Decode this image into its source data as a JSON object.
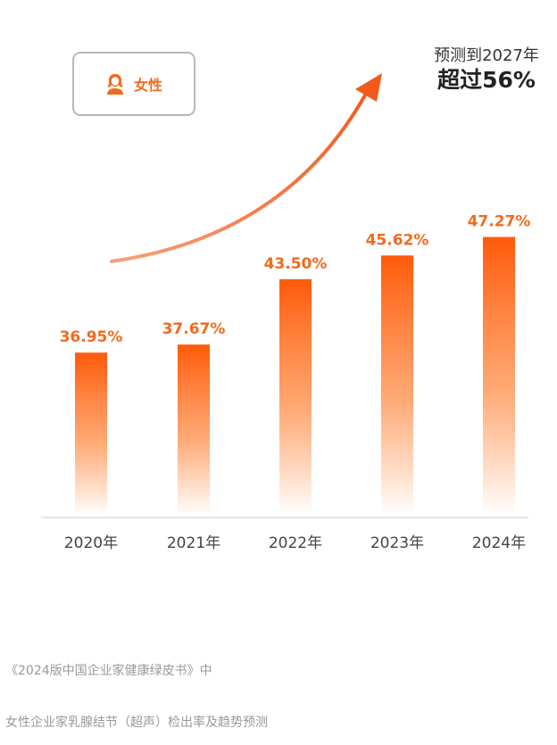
{
  "legend": {
    "label": "女性",
    "icon": "female-user-icon",
    "color": "#f36a1d"
  },
  "forecast": {
    "line1": "预测到2027年",
    "line2": "超过56%"
  },
  "captions": {
    "source": "《2024版中国企业家健康绿皮书》中",
    "title": "女性企业家乳腺结节（超声）检出率及趋势预测"
  },
  "colors": {
    "bar_top": "#ff5a0a",
    "bar_bottom": "#ffffff",
    "value_label": "#f36a1d",
    "trend_arrow": "#f36a1d",
    "baseline": "#dddddd",
    "tick_label": "#444444"
  },
  "chart_data": {
    "type": "bar",
    "categories": [
      "2020年",
      "2021年",
      "2022年",
      "2023年",
      "2024年"
    ],
    "values": [
      36.95,
      37.67,
      43.5,
      45.62,
      47.27
    ],
    "value_labels": [
      "36.95%",
      "37.67%",
      "43.50%",
      "45.62%",
      "47.27%"
    ],
    "series": [
      {
        "name": "女性",
        "values": [
          36.95,
          37.67,
          43.5,
          45.62,
          47.27
        ]
      }
    ],
    "unit": "%",
    "ylim": [
      0,
      50
    ],
    "grid": false,
    "legend_position": "top-left",
    "annotation": "预测到2027年 超过56%",
    "trend": "up"
  }
}
